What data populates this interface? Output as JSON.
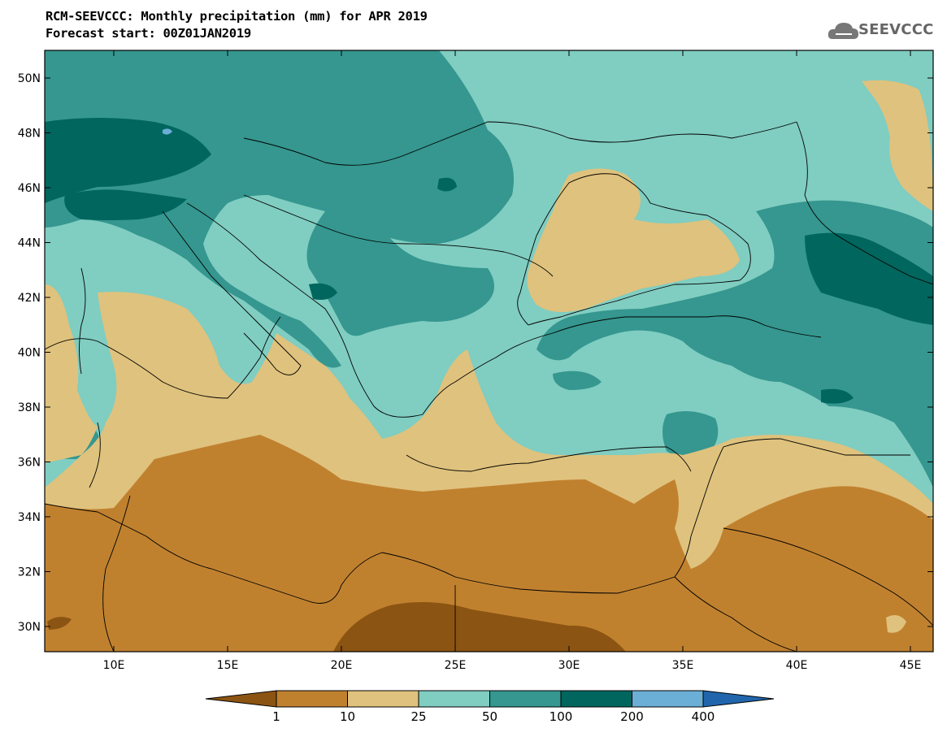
{
  "header": {
    "title": "RCM-SEEVCCC: Monthly precipitation (mm) for APR 2019",
    "subtitle": "Forecast start: 00Z01JAN2019"
  },
  "logo": {
    "text": "SEEVCCC",
    "icon": "cloud-icon"
  },
  "axes": {
    "lat_ticks": [
      "50N",
      "48N",
      "46N",
      "44N",
      "42N",
      "40N",
      "38N",
      "36N",
      "34N",
      "32N",
      "30N"
    ],
    "lon_ticks": [
      "10E",
      "15E",
      "20E",
      "25E",
      "30E",
      "35E",
      "40E",
      "45E"
    ]
  },
  "colorbar": {
    "labels": [
      "1",
      "10",
      "25",
      "50",
      "100",
      "200",
      "400"
    ],
    "colors": [
      "#8c5412",
      "#c0812f",
      "#dfc27d",
      "#80cdc1",
      "#35978f",
      "#01665e",
      "#6baed6",
      "#2166ac"
    ]
  }
}
